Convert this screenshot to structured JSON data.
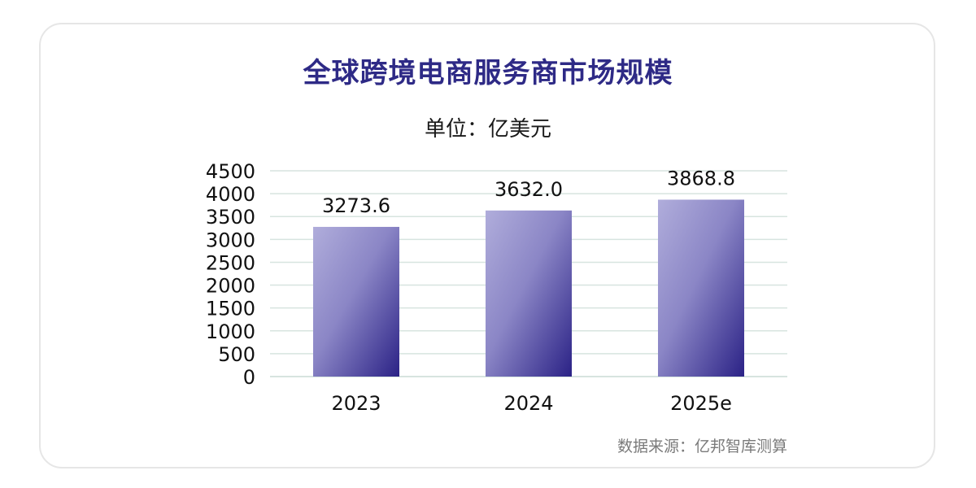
{
  "chart_data": {
    "type": "bar",
    "title": "全球跨境电商服务商市场规模",
    "subtitle": "单位：亿美元",
    "categories": [
      "2023",
      "2024",
      "2025e"
    ],
    "values": [
      3273.6,
      3632.0,
      3868.8
    ],
    "value_labels": [
      "3273.6",
      "3632.0",
      "3868.8"
    ],
    "ylim": [
      0,
      4500
    ],
    "yticks": [
      0,
      500,
      1000,
      1500,
      2000,
      2500,
      3000,
      3500,
      4000,
      4500
    ],
    "grid": true,
    "legend": "none",
    "source": "数据来源：亿邦智库测算",
    "colors": {
      "bar_light": "#a9a6d6",
      "bar_dark": "#2b2286",
      "title": "#2e2a86",
      "grid": "#d7e4df"
    }
  }
}
